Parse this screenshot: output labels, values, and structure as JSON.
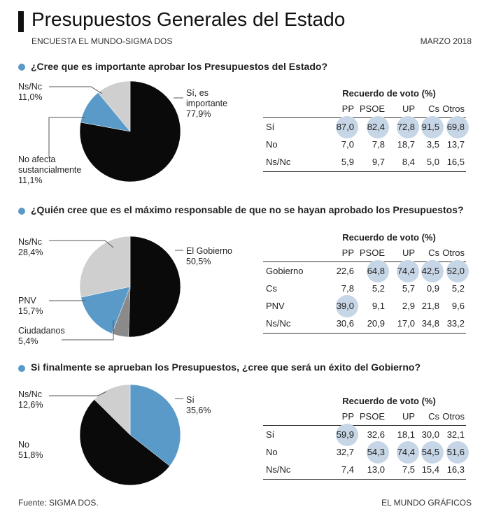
{
  "header": {
    "title": "Presupuestos Generales del Estado",
    "subtitle": "ENCUESTA EL MUNDO-SIGMA DOS",
    "date": "MARZO 2018"
  },
  "footer": {
    "source": "Fuente: SIGMA DOS.",
    "credit": "EL MUNDO GRÁFICOS"
  },
  "colors": {
    "black": "#0a0a0a",
    "blue": "#5a9ac9",
    "gray": "#cfcfcf",
    "darkgray": "#8a8a8a",
    "highlight": "#c7d6e6",
    "dot": "#5a9ac9"
  },
  "chart_data": [
    {
      "type": "pie",
      "title": "¿Cree que es importante aprobar los Presupuestos del Estado?",
      "slices": [
        {
          "label": "Sí, es importante",
          "value": 77.9,
          "value_text": "77,9%",
          "color": "#0a0a0a"
        },
        {
          "label": "No afecta sustancialmente",
          "value": 11.1,
          "value_text": "11,1%",
          "color": "#5a9ac9"
        },
        {
          "label": "Ns/Nc",
          "value": 11.0,
          "value_text": "11,0%",
          "color": "#cfcfcf"
        }
      ],
      "table": {
        "title": "Recuerdo de voto (%)",
        "columns": [
          "PP",
          "PSOE",
          "UP",
          "Cs",
          "Otros"
        ],
        "rows": [
          {
            "label": "Sí",
            "values": [
              "87,0",
              "82,4",
              "72,8",
              "91,5",
              "69,8"
            ],
            "highlight": [
              true,
              true,
              true,
              true,
              true
            ]
          },
          {
            "label": "No",
            "values": [
              "7,0",
              "7,8",
              "18,7",
              "3,5",
              "13,7"
            ],
            "highlight": [
              false,
              false,
              false,
              false,
              false
            ]
          },
          {
            "label": "Ns/Nc",
            "values": [
              "5,9",
              "9,7",
              "8,4",
              "5,0",
              "16,5"
            ],
            "highlight": [
              false,
              false,
              false,
              false,
              false
            ]
          }
        ]
      }
    },
    {
      "type": "pie",
      "title": "¿Quién cree que es el máximo responsable de que no se hayan aprobado los Presupuestos?",
      "slices": [
        {
          "label": "El Gobierno",
          "value": 50.5,
          "value_text": "50,5%",
          "color": "#0a0a0a"
        },
        {
          "label": "Ciudadanos",
          "value": 5.4,
          "value_text": "5,4%",
          "color": "#8a8a8a"
        },
        {
          "label": "PNV",
          "value": 15.7,
          "value_text": "15,7%",
          "color": "#5a9ac9"
        },
        {
          "label": "Ns/Nc",
          "value": 28.4,
          "value_text": "28,4%",
          "color": "#cfcfcf"
        }
      ],
      "table": {
        "title": "Recuerdo de voto (%)",
        "columns": [
          "PP",
          "PSOE",
          "UP",
          "Cs",
          "Otros"
        ],
        "rows": [
          {
            "label": "Gobierno",
            "values": [
              "22,6",
              "64,8",
              "74,4",
              "42,5",
              "52,0"
            ],
            "highlight": [
              false,
              true,
              true,
              true,
              true
            ]
          },
          {
            "label": "Cs",
            "values": [
              "7,8",
              "5,2",
              "5,7",
              "0,9",
              "5,2"
            ],
            "highlight": [
              false,
              false,
              false,
              false,
              false
            ]
          },
          {
            "label": "PNV",
            "values": [
              "39,0",
              "9,1",
              "2,9",
              "21,8",
              "9,6"
            ],
            "highlight": [
              true,
              false,
              false,
              false,
              false
            ]
          },
          {
            "label": "Ns/Nc",
            "values": [
              "30,6",
              "20,9",
              "17,0",
              "34,8",
              "33,2"
            ],
            "highlight": [
              false,
              false,
              false,
              false,
              false
            ]
          }
        ]
      }
    },
    {
      "type": "pie",
      "title": "Si finalmente se aprueban los Presupuestos, ¿cree que será un éxito del Gobierno?",
      "slices": [
        {
          "label": "Sí",
          "value": 35.6,
          "value_text": "35,6%",
          "color": "#5a9ac9"
        },
        {
          "label": "No",
          "value": 51.8,
          "value_text": "51,8%",
          "color": "#0a0a0a"
        },
        {
          "label": "Ns/Nc",
          "value": 12.6,
          "value_text": "12,6%",
          "color": "#cfcfcf"
        }
      ],
      "table": {
        "title": "Recuerdo de voto (%)",
        "columns": [
          "PP",
          "PSOE",
          "UP",
          "Cs",
          "Otros"
        ],
        "rows": [
          {
            "label": "Sí",
            "values": [
              "59,9",
              "32,6",
              "18,1",
              "30,0",
              "32,1"
            ],
            "highlight": [
              true,
              false,
              false,
              false,
              false
            ]
          },
          {
            "label": "No",
            "values": [
              "32,7",
              "54,3",
              "74,4",
              "54,5",
              "51,6"
            ],
            "highlight": [
              false,
              true,
              true,
              true,
              true
            ]
          },
          {
            "label": "Ns/Nc",
            "values": [
              "7,4",
              "13,0",
              "7,5",
              "15,4",
              "16,3"
            ],
            "highlight": [
              false,
              false,
              false,
              false,
              false
            ]
          }
        ]
      }
    }
  ]
}
